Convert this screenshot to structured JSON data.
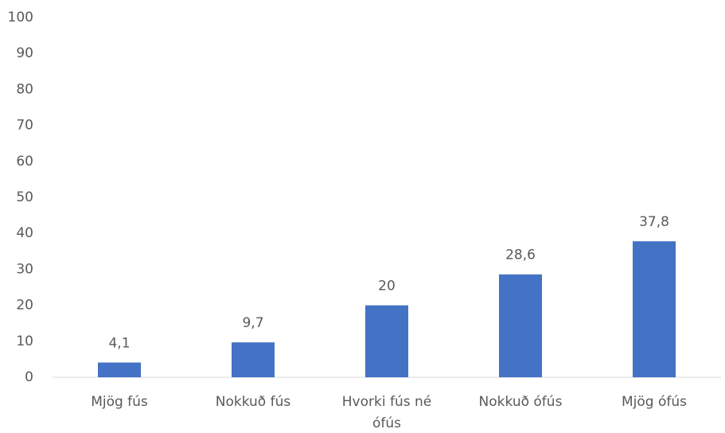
{
  "chart_data": {
    "type": "bar",
    "categories": [
      "Mjög fús",
      "Nokkuð fús",
      "Hvorki fús né ófús",
      "Nokkuð ófús",
      "Mjög ófús"
    ],
    "values": [
      4.1,
      9.7,
      20,
      28.6,
      37.8
    ],
    "value_labels": [
      "4,1",
      "9,7",
      "20",
      "28,6",
      "37,8"
    ],
    "color": "#4472c4",
    "ylim": [
      0,
      100
    ],
    "yticks": [
      0,
      10,
      20,
      30,
      40,
      50,
      60,
      70,
      80,
      90,
      100
    ],
    "grid": false
  }
}
